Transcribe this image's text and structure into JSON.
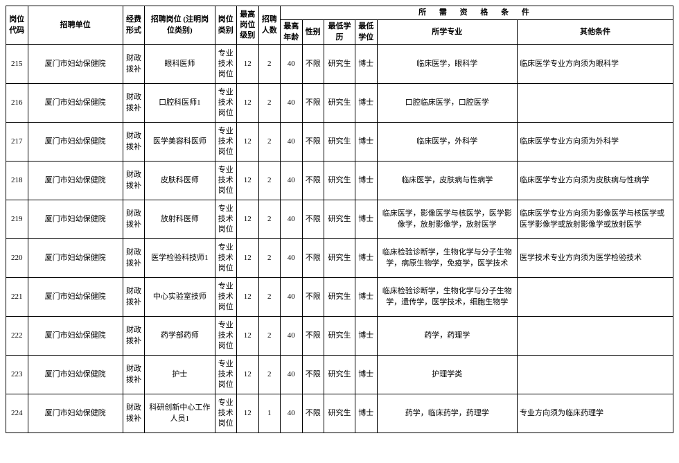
{
  "header": {
    "code": "岗位代码",
    "unit": "招聘单位",
    "fund": "经费形式",
    "position": "招聘岗位\n(注明岗位类别)",
    "category": "岗位类别",
    "level": "最高岗位级别",
    "count": "招聘人数",
    "group": "所 需 资 格 条 件",
    "age": "最高年龄",
    "sex": "性别",
    "edu": "最低学历",
    "deg": "最低学位",
    "major": "所学专业",
    "other": "其他条件"
  },
  "rows": [
    {
      "code": "215",
      "unit": "厦门市妇幼保健院",
      "fund": "财政拨补",
      "position": "眼科医师",
      "category": "专业技术岗位",
      "level": "12",
      "count": "2",
      "age": "40",
      "sex": "不限",
      "edu": "研究生",
      "deg": "博士",
      "major": "临床医学，眼科学",
      "other": "临床医学专业方向须为眼科学"
    },
    {
      "code": "216",
      "unit": "厦门市妇幼保健院",
      "fund": "财政拨补",
      "position": "口腔科医师1",
      "category": "专业技术岗位",
      "level": "12",
      "count": "2",
      "age": "40",
      "sex": "不限",
      "edu": "研究生",
      "deg": "博士",
      "major": "口腔临床医学，口腔医学",
      "other": ""
    },
    {
      "code": "217",
      "unit": "厦门市妇幼保健院",
      "fund": "财政拨补",
      "position": "医学美容科医师",
      "category": "专业技术岗位",
      "level": "12",
      "count": "2",
      "age": "40",
      "sex": "不限",
      "edu": "研究生",
      "deg": "博士",
      "major": "临床医学，外科学",
      "other": "临床医学专业方向须为外科学"
    },
    {
      "code": "218",
      "unit": "厦门市妇幼保健院",
      "fund": "财政拨补",
      "position": "皮肤科医师",
      "category": "专业技术岗位",
      "level": "12",
      "count": "2",
      "age": "40",
      "sex": "不限",
      "edu": "研究生",
      "deg": "博士",
      "major": "临床医学，皮肤病与性病学",
      "other": "临床医学专业方向须为皮肤病与性病学"
    },
    {
      "code": "219",
      "unit": "厦门市妇幼保健院",
      "fund": "财政拨补",
      "position": "放射科医师",
      "category": "专业技术岗位",
      "level": "12",
      "count": "2",
      "age": "40",
      "sex": "不限",
      "edu": "研究生",
      "deg": "博士",
      "major": "临床医学，影像医学与核医学，医学影像学，放射影像学，放射医学",
      "other": "临床医学专业方向须为影像医学与核医学或医学影像学或放射影像学或放射医学"
    },
    {
      "code": "220",
      "unit": "厦门市妇幼保健院",
      "fund": "财政拨补",
      "position": "医学检验科技师1",
      "category": "专业技术岗位",
      "level": "12",
      "count": "2",
      "age": "40",
      "sex": "不限",
      "edu": "研究生",
      "deg": "博士",
      "major": "临床检验诊断学，生物化学与分子生物学，病原生物学，免疫学，医学技术",
      "other": "医学技术专业方向须为医学检验技术"
    },
    {
      "code": "221",
      "unit": "厦门市妇幼保健院",
      "fund": "财政拨补",
      "position": "中心实验室技师",
      "category": "专业技术岗位",
      "level": "12",
      "count": "2",
      "age": "40",
      "sex": "不限",
      "edu": "研究生",
      "deg": "博士",
      "major": "临床检验诊断学，生物化学与分子生物学，遗传学，医学技术，细胞生物学",
      "other": ""
    },
    {
      "code": "222",
      "unit": "厦门市妇幼保健院",
      "fund": "财政拨补",
      "position": "药学部药师",
      "category": "专业技术岗位",
      "level": "12",
      "count": "2",
      "age": "40",
      "sex": "不限",
      "edu": "研究生",
      "deg": "博士",
      "major": "药学，药理学",
      "other": ""
    },
    {
      "code": "223",
      "unit": "厦门市妇幼保健院",
      "fund": "财政拨补",
      "position": "护士",
      "category": "专业技术岗位",
      "level": "12",
      "count": "2",
      "age": "40",
      "sex": "不限",
      "edu": "研究生",
      "deg": "博士",
      "major": "护理学类",
      "other": ""
    },
    {
      "code": "224",
      "unit": "厦门市妇幼保健院",
      "fund": "财政拨补",
      "position": "科研创新中心工作人员1",
      "category": "专业技术岗位",
      "level": "12",
      "count": "1",
      "age": "40",
      "sex": "不限",
      "edu": "研究生",
      "deg": "博士",
      "major": "药学，临床药学，药理学",
      "other": "专业方向须为临床药理学"
    }
  ]
}
